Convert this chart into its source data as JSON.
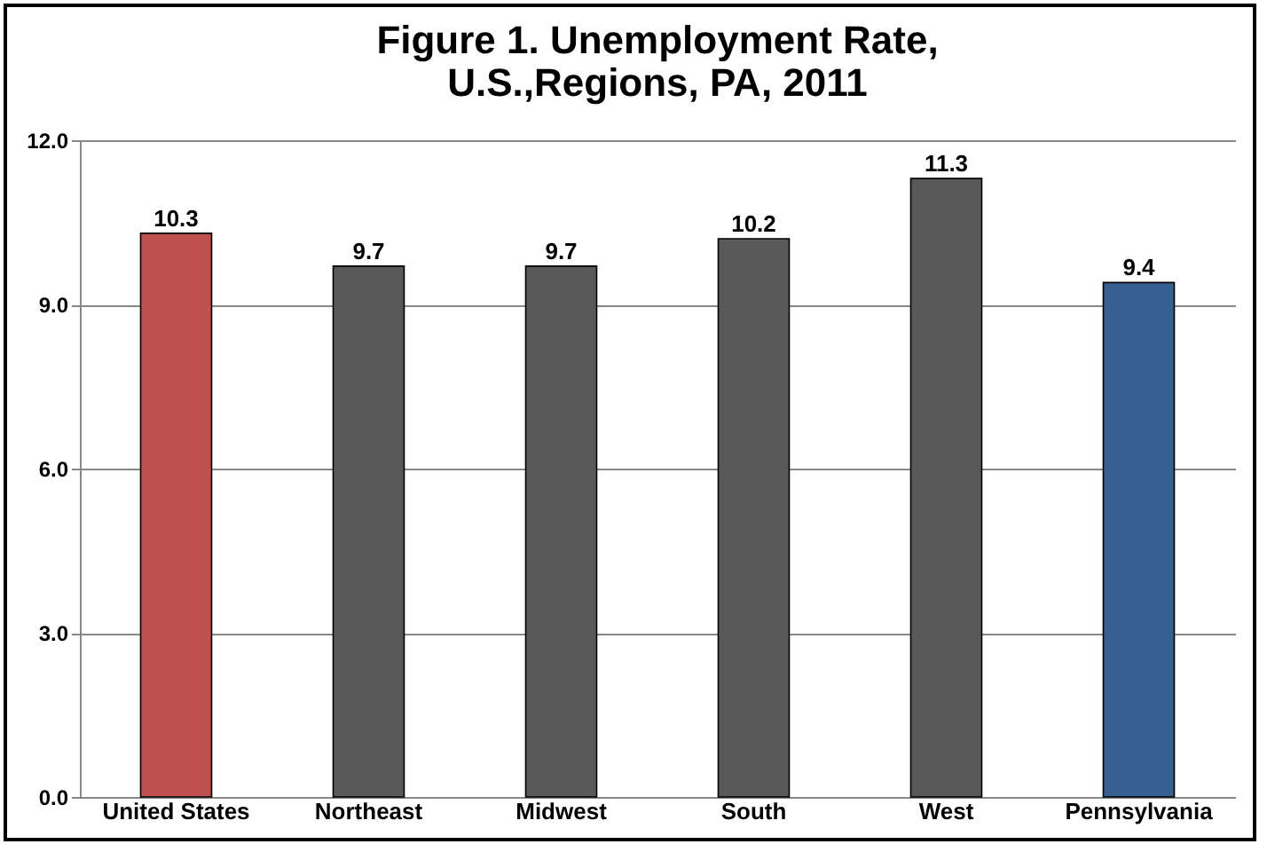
{
  "chart_data": {
    "type": "bar",
    "title": "Figure 1. Unemployment Rate,\nU.S.,Regions, PA, 2011",
    "categories": [
      "United States",
      "Northeast",
      "Midwest",
      "South",
      "West",
      "Pennsylvania"
    ],
    "values": [
      10.3,
      9.7,
      9.7,
      10.2,
      11.3,
      9.4
    ],
    "colors": [
      "#c0504d",
      "#595959",
      "#595959",
      "#595959",
      "#595959",
      "#376092"
    ],
    "ylim": [
      0,
      12
    ],
    "yticks": [
      {
        "value": 0,
        "label": "0.0"
      },
      {
        "value": 3,
        "label": "3.0"
      },
      {
        "value": 6,
        "label": "6.0"
      },
      {
        "value": 9,
        "label": "9.0"
      },
      {
        "value": 12,
        "label": "12.0"
      }
    ],
    "grid": "y",
    "data_labels": true
  }
}
